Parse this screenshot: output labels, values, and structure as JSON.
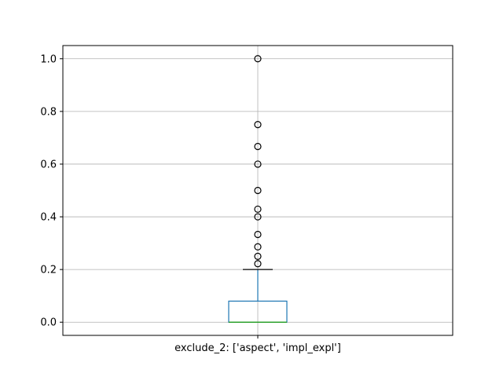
{
  "chart_data": {
    "type": "box",
    "categories": [
      "exclude_2: ['aspect', 'impl_expl']"
    ],
    "boxes": [
      {
        "category": "exclude_2: ['aspect', 'impl_expl']",
        "q1": 0.0,
        "median": 0.0,
        "q3": 0.08,
        "whisker_low": 0.0,
        "whisker_high": 0.2,
        "outliers": [
          0.222,
          0.25,
          0.286,
          0.333,
          0.4,
          0.429,
          0.5,
          0.6,
          0.667,
          0.75,
          1.0
        ]
      }
    ],
    "yticks": [
      "0.0",
      "0.2",
      "0.4",
      "0.6",
      "0.8",
      "1.0"
    ],
    "ylim": [
      -0.05,
      1.05
    ],
    "grid": true,
    "colors": {
      "box": "#1f77b4",
      "median": "#2ca02c",
      "whisker_cap": "#000000",
      "grid": "#b0b0b0"
    }
  }
}
